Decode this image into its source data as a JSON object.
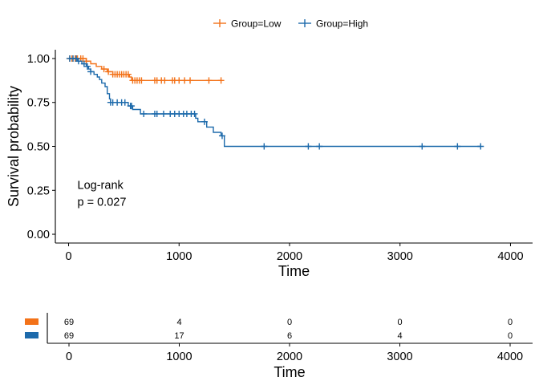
{
  "chart_data": {
    "type": "line",
    "subtype": "kaplan-meier",
    "legend": {
      "position": "top",
      "entries": [
        {
          "label": "Group=Low",
          "color": "#f37219"
        },
        {
          "label": "Group=High",
          "color": "#1d6aab"
        }
      ]
    },
    "xlabel": "Time",
    "ylabel": "Survival probability",
    "xlim": [
      -120,
      4200
    ],
    "ylim": [
      -0.05,
      1.05
    ],
    "x_ticks": [
      0,
      1000,
      2000,
      3000,
      4000
    ],
    "x_tick_labels": [
      "0",
      "1000",
      "2000",
      "3000",
      "4000"
    ],
    "y_ticks": [
      0,
      0.25,
      0.5,
      0.75,
      1.0
    ],
    "y_tick_labels": [
      "0.00",
      "0.25",
      "0.50",
      "0.75",
      "1.00"
    ],
    "grid": false,
    "annotation": {
      "line1": "Log-rank",
      "line2": "p = 0.027",
      "x": 80,
      "y": 0.28
    },
    "series": [
      {
        "name": "Group=Low",
        "color": "#f37219",
        "steps": [
          [
            0,
            1.0
          ],
          [
            160,
            0.985
          ],
          [
            200,
            0.97
          ],
          [
            250,
            0.955
          ],
          [
            300,
            0.94
          ],
          [
            350,
            0.925
          ],
          [
            400,
            0.91
          ],
          [
            550,
            0.895
          ],
          [
            570,
            0.875
          ],
          [
            1380,
            0.875
          ]
        ],
        "censor_x": [
          10,
          30,
          60,
          80,
          110,
          130,
          160,
          320,
          360,
          400,
          420,
          440,
          460,
          480,
          500,
          520,
          540,
          580,
          600,
          620,
          640,
          660,
          780,
          800,
          840,
          870,
          940,
          960,
          1000,
          1050,
          1100,
          1270,
          1380
        ]
      },
      {
        "name": "Group=High",
        "color": "#1d6aab",
        "steps": [
          [
            0,
            1.0
          ],
          [
            80,
            0.985
          ],
          [
            120,
            0.97
          ],
          [
            160,
            0.955
          ],
          [
            180,
            0.94
          ],
          [
            200,
            0.925
          ],
          [
            230,
            0.91
          ],
          [
            260,
            0.895
          ],
          [
            280,
            0.88
          ],
          [
            300,
            0.86
          ],
          [
            330,
            0.84
          ],
          [
            350,
            0.8
          ],
          [
            370,
            0.77
          ],
          [
            380,
            0.75
          ],
          [
            540,
            0.73
          ],
          [
            580,
            0.71
          ],
          [
            650,
            0.685
          ],
          [
            1150,
            0.66
          ],
          [
            1170,
            0.64
          ],
          [
            1250,
            0.61
          ],
          [
            1310,
            0.58
          ],
          [
            1380,
            0.56
          ],
          [
            1410,
            0.5
          ],
          [
            3730,
            0.5
          ]
        ],
        "censor_x": [
          10,
          40,
          70,
          90,
          140,
          170,
          200,
          380,
          400,
          440,
          480,
          510,
          560,
          570,
          680,
          780,
          800,
          860,
          920,
          960,
          1000,
          1040,
          1070,
          1110,
          1140,
          1230,
          1390,
          1770,
          2170,
          2270,
          3200,
          3520,
          3730
        ]
      }
    ],
    "risk_table": {
      "xlabel": "Time",
      "x_ticks": [
        0,
        1000,
        2000,
        3000,
        4000
      ],
      "x_tick_labels": [
        "0",
        "1000",
        "2000",
        "3000",
        "4000"
      ],
      "rows": [
        {
          "color": "#f37219",
          "values": [
            "69",
            "4",
            "0",
            "0",
            "0"
          ]
        },
        {
          "color": "#1d6aab",
          "values": [
            "69",
            "17",
            "6",
            "4",
            "0"
          ]
        }
      ]
    }
  }
}
